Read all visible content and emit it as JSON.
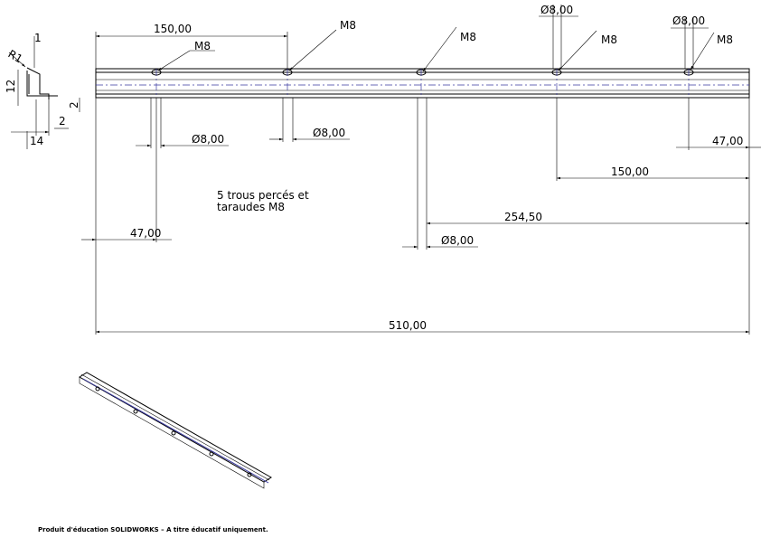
{
  "profile": {
    "top": "1",
    "radius": "R1",
    "height": "12",
    "lip": "2",
    "flange": "2",
    "width": "14"
  },
  "dimensions": {
    "hole_spacing": "150,00",
    "top_diameter_1": "Ø8,00",
    "top_diameter_2": "Ø8,00",
    "bottom_diameter_1": "Ø8,00",
    "bottom_diameter_2": "Ø8,00",
    "bottom_diameter_3": "Ø8,00",
    "right_offset": "47,00",
    "right_spacing": "150,00",
    "middle_offset": "254,50",
    "left_offset": "47,00",
    "overall_length": "510,00"
  },
  "threads": [
    "M8",
    "M8",
    "M8",
    "M8",
    "M8"
  ],
  "note": [
    "5 trous percés et",
    "taraudes M8"
  ],
  "footer": "Produit d'éducation SOLIDWORKS – A titre éducatif uniquement."
}
